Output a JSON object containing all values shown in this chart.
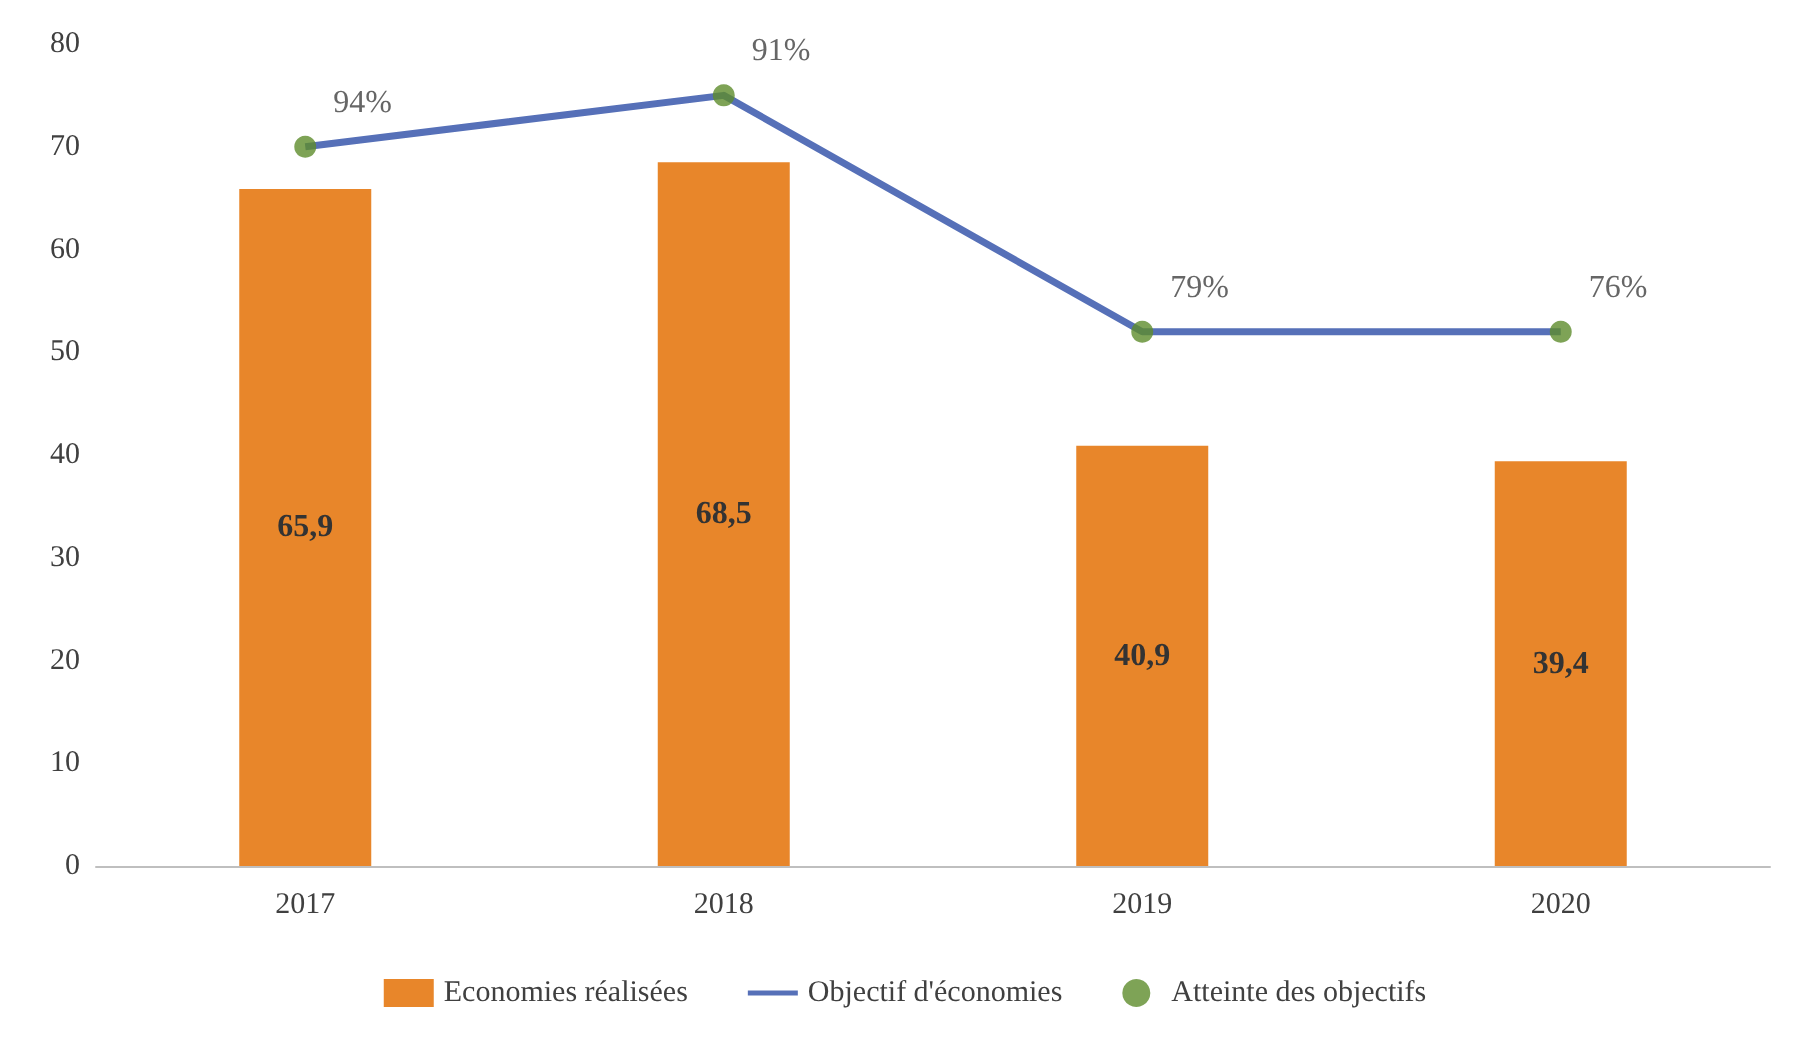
{
  "chart_data": {
    "type": "bar",
    "categories": [
      "2017",
      "2018",
      "2019",
      "2020"
    ],
    "series": [
      {
        "name": "Economies réalisées",
        "color": "#e8862a",
        "values": [
          65.9,
          68.5,
          40.9,
          39.4
        ],
        "value_labels": [
          "65,9",
          "68,5",
          "40,9",
          "39,4"
        ]
      },
      {
        "name": "Objectif d'économies",
        "type": "line",
        "color": "#5670b8",
        "values": [
          70,
          75,
          52,
          52
        ],
        "marker": "none"
      },
      {
        "name": "Atteinte des objectifs",
        "type": "scatter",
        "color": "#5e8c2c",
        "values": [
          70,
          75,
          52,
          52
        ],
        "marker": "circle"
      }
    ],
    "annotations": [
      {
        "text": "94%",
        "x": "2017",
        "y": 70
      },
      {
        "text": "91%",
        "x": "2018",
        "y": 75
      },
      {
        "text": "79%",
        "x": "2019",
        "y": 52
      },
      {
        "text": "76%",
        "x": "2020",
        "y": 52
      }
    ],
    "ylim": [
      0,
      80
    ],
    "yticks": [
      0,
      10,
      20,
      30,
      40,
      50,
      60,
      70,
      80
    ],
    "grid": false,
    "legend": "bottom"
  }
}
